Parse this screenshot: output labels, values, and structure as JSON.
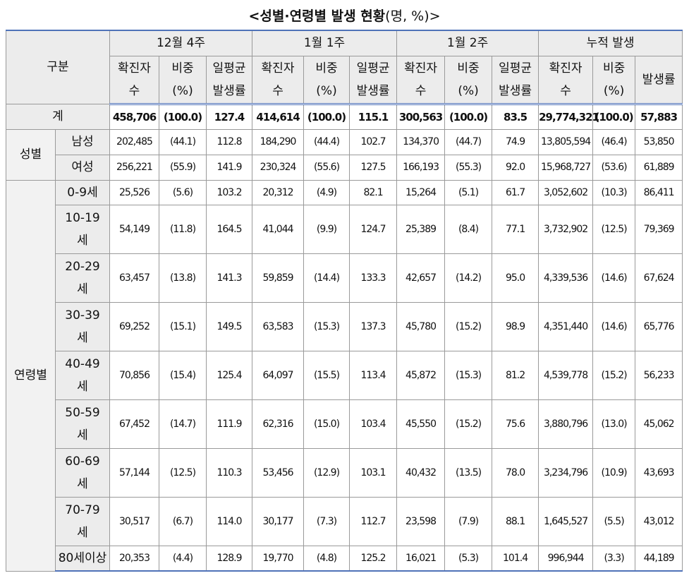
{
  "title": "<성별·연령별 발생 현황",
  "title_unit": "(명, %)>",
  "header": {
    "corner": "구분",
    "groups": [
      "12월 4주",
      "1월 1주",
      "1월 2주",
      "누적 발생"
    ],
    "subheaders": [
      "확진자\n수",
      "비중\n(%)",
      "일평균\n발생률",
      "확진자\n수",
      "비중\n(%)",
      "일평균\n발생률",
      "확진자\n수",
      "비중\n(%)",
      "일평균\n발생률",
      "확진자\n수",
      "비중\n(%)",
      "발생률"
    ]
  },
  "total": {
    "label": "계",
    "values": [
      "458,706",
      "(100.0)",
      "127.4",
      "414,614",
      "(100.0)",
      "115.1",
      "300,563",
      "(100.0)",
      "83.5",
      "29,774,321",
      "(100.0)",
      "57,883"
    ]
  },
  "sections": [
    {
      "label": "성별",
      "rows": [
        {
          "label": "남성",
          "values": [
            "202,485",
            "(44.1)",
            "112.8",
            "184,290",
            "(44.4)",
            "102.7",
            "134,370",
            "(44.7)",
            "74.9",
            "13,805,594",
            "(46.4)",
            "53,850"
          ]
        },
        {
          "label": "여성",
          "values": [
            "256,221",
            "(55.9)",
            "141.9",
            "230,324",
            "(55.6)",
            "127.5",
            "166,193",
            "(55.3)",
            "92.0",
            "15,968,727",
            "(53.6)",
            "61,889"
          ]
        }
      ]
    },
    {
      "label": "연령별",
      "rows": [
        {
          "label": "0-9세",
          "values": [
            "25,526",
            "(5.6)",
            "103.2",
            "20,312",
            "(4.9)",
            "82.1",
            "15,264",
            "(5.1)",
            "61.7",
            "3,052,602",
            "(10.3)",
            "86,411"
          ]
        },
        {
          "label": "10-19\n세",
          "values": [
            "54,149",
            "(11.8)",
            "164.5",
            "41,044",
            "(9.9)",
            "124.7",
            "25,389",
            "(8.4)",
            "77.1",
            "3,732,902",
            "(12.5)",
            "79,369"
          ]
        },
        {
          "label": "20-29\n세",
          "values": [
            "63,457",
            "(13.8)",
            "141.3",
            "59,859",
            "(14.4)",
            "133.3",
            "42,657",
            "(14.2)",
            "95.0",
            "4,339,536",
            "(14.6)",
            "67,624"
          ]
        },
        {
          "label": "30-39\n세",
          "values": [
            "69,252",
            "(15.1)",
            "149.5",
            "63,583",
            "(15.3)",
            "137.3",
            "45,780",
            "(15.2)",
            "98.9",
            "4,351,440",
            "(14.6)",
            "65,776"
          ]
        },
        {
          "label": "40-49\n세",
          "values": [
            "70,856",
            "(15.4)",
            "125.4",
            "64,097",
            "(15.5)",
            "113.4",
            "45,872",
            "(15.3)",
            "81.2",
            "4,539,778",
            "(15.2)",
            "56,233"
          ]
        },
        {
          "label": "50-59\n세",
          "values": [
            "67,452",
            "(14.7)",
            "111.9",
            "62,316",
            "(15.0)",
            "103.4",
            "45,550",
            "(15.2)",
            "75.6",
            "3,880,796",
            "(13.0)",
            "45,062"
          ]
        },
        {
          "label": "60-69\n세",
          "values": [
            "57,144",
            "(12.5)",
            "110.3",
            "53,456",
            "(12.9)",
            "103.1",
            "40,432",
            "(13.5)",
            "78.0",
            "3,234,796",
            "(10.9)",
            "43,693"
          ]
        },
        {
          "label": "70-79\n세",
          "values": [
            "30,517",
            "(6.7)",
            "114.0",
            "30,177",
            "(7.3)",
            "112.7",
            "23,598",
            "(7.9)",
            "88.1",
            "1,645,527",
            "(5.5)",
            "43,012"
          ]
        },
        {
          "label": "80세이상",
          "values": [
            "20,353",
            "(4.4)",
            "128.9",
            "19,770",
            "(4.8)",
            "125.2",
            "16,021",
            "(5.3)",
            "101.4",
            "996,944",
            "(3.3)",
            "44,189"
          ]
        }
      ]
    }
  ]
}
